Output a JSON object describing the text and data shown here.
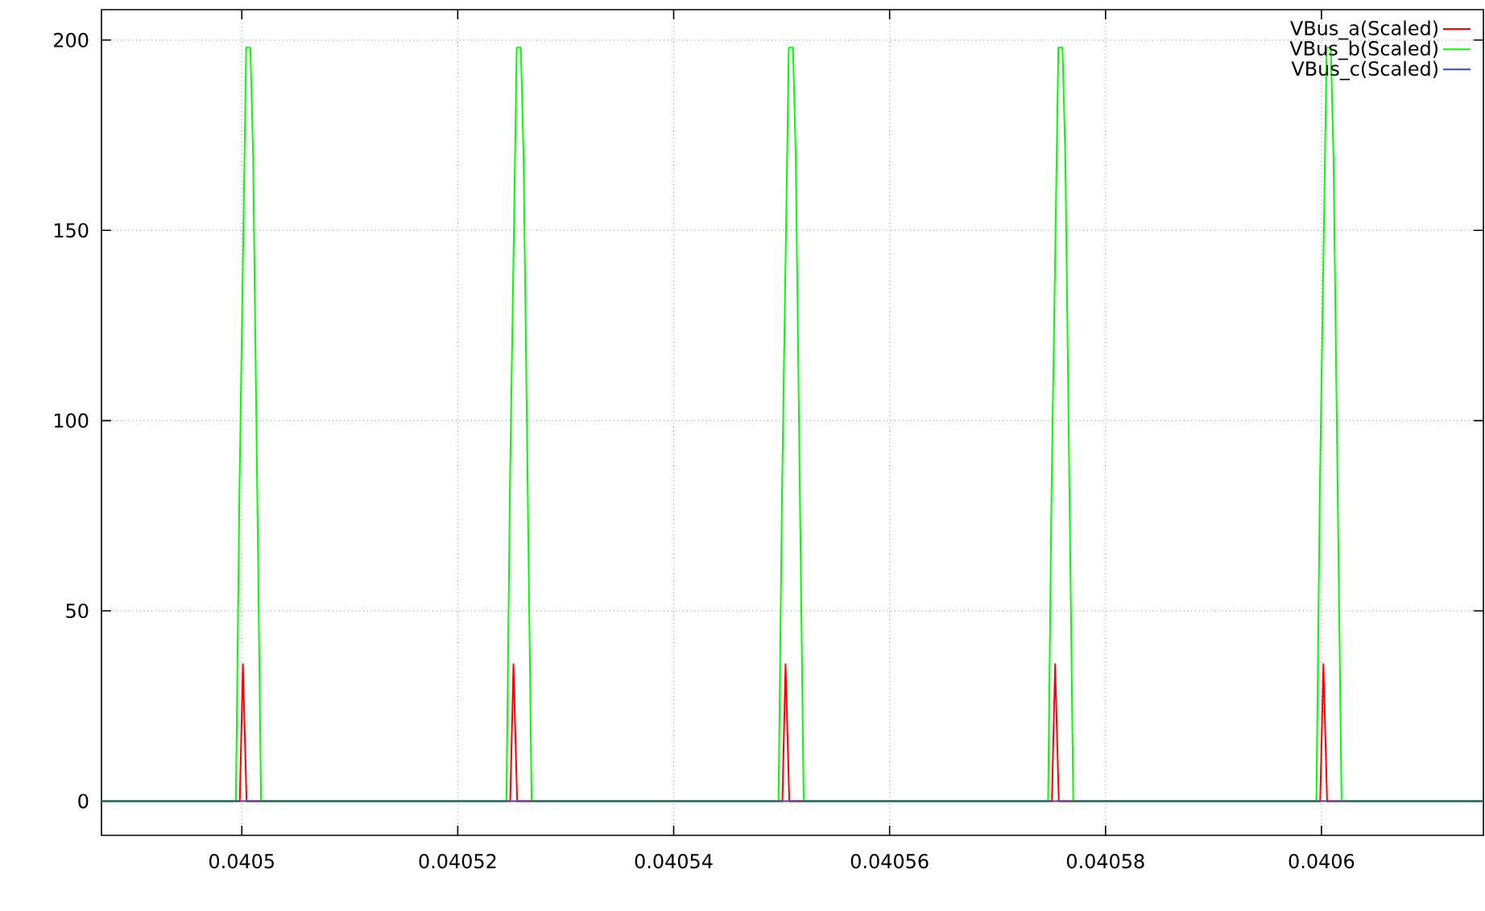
{
  "chart_data": {
    "type": "line",
    "xlim": [
      0.040487,
      0.040615
    ],
    "xticks": [
      0.0405,
      0.04052,
      0.04054,
      0.04056,
      0.04058,
      0.0406
    ],
    "ylim": [
      -9,
      208
    ],
    "yticks": [
      0,
      50,
      100,
      150,
      200
    ],
    "grid": true,
    "legend": "top right",
    "series": [
      {
        "name": "VBus_a(Scaled)",
        "color": "#ff0000",
        "x": [
          0.040487,
          0.04049981,
          0.0405001,
          0.04050044,
          0.04052486,
          0.04052516,
          0.0405255,
          0.04055007,
          0.04055036,
          0.04055071,
          0.04057503,
          0.04057533,
          0.04057567,
          0.04059988,
          0.04060018,
          0.04060052,
          0.040615
        ],
        "values": [
          0,
          0,
          36,
          0,
          0,
          36,
          0,
          0,
          36,
          0,
          0,
          36,
          0,
          0,
          36,
          0,
          0
        ]
      },
      {
        "name": "VBus_b(Scaled)",
        "color": "#00ff00",
        "x": [
          0.040487,
          0.04049945,
          0.04049978,
          0.0405004,
          0.04050079,
          0.04050104,
          0.04050178,
          0.04052451,
          0.04052483,
          0.04052546,
          0.04052584,
          0.04052609,
          0.04052684,
          0.04054971,
          0.04055004,
          0.04055066,
          0.04055105,
          0.0405513,
          0.04055204,
          0.04057468,
          0.040575,
          0.04057563,
          0.04057601,
          0.04057627,
          0.04057701,
          0.04059953,
          0.04059985,
          0.04060048,
          0.04060086,
          0.04060111,
          0.04060186,
          0.040615
        ],
        "values": [
          0,
          0,
          82,
          198,
          198,
          170,
          0,
          0,
          82,
          198,
          198,
          170,
          0,
          0,
          82,
          198,
          198,
          170,
          0,
          0,
          82,
          198,
          198,
          170,
          0,
          0,
          82,
          198,
          198,
          170,
          0,
          0
        ]
      },
      {
        "name": "VBus_c(Scaled)",
        "color": "#2f4fb5",
        "x": [
          0.040487,
          0.040615
        ],
        "values": [
          0,
          0
        ]
      }
    ]
  }
}
